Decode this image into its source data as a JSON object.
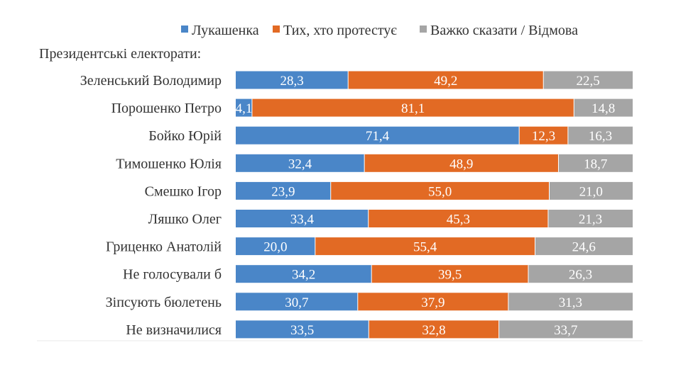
{
  "chart_data": {
    "type": "bar",
    "orientation": "horizontal",
    "stacked": true,
    "subtitle": "Президентські електорати:",
    "categories": [
      "Зеленський Володимир",
      "Порошенко Петро",
      "Бойко Юрій",
      "Тимошенко Юлія",
      "Смешко Ігор",
      "Ляшко Олег",
      "Гриценко Анатолій",
      "Не голосували б",
      "Зіпсують бюлетень",
      "Не визначилися"
    ],
    "series": [
      {
        "name": "Лукашенка",
        "color": "#4a86c8",
        "values": [
          28.3,
          4.1,
          71.4,
          32.4,
          23.9,
          33.4,
          20.0,
          34.2,
          30.7,
          33.5
        ],
        "labels": [
          "28,3",
          "4,1",
          "71,4",
          "32,4",
          "23,9",
          "33,4",
          "20,0",
          "34,2",
          "30,7",
          "33,5"
        ]
      },
      {
        "name": "Тих, хто протестує",
        "color": "#e26a24",
        "values": [
          49.2,
          81.1,
          12.3,
          48.9,
          55.0,
          45.3,
          55.4,
          39.5,
          37.9,
          32.8
        ],
        "labels": [
          "49,2",
          "81,1",
          "12,3",
          "48,9",
          "55,0",
          "45,3",
          "55,4",
          "39,5",
          "37,9",
          "32,8"
        ]
      },
      {
        "name": "Важко сказати / Відмова",
        "color": "#a5a5a5",
        "values": [
          22.5,
          14.8,
          16.3,
          18.7,
          21.0,
          21.3,
          24.6,
          26.3,
          31.3,
          33.7
        ],
        "labels": [
          "22,5",
          "14,8",
          "16,3",
          "18,7",
          "21,0",
          "21,3",
          "24,6",
          "26,3",
          "31,3",
          "33,7"
        ]
      }
    ],
    "xlim": [
      0,
      100
    ],
    "legend_position": "top",
    "grid": false
  }
}
